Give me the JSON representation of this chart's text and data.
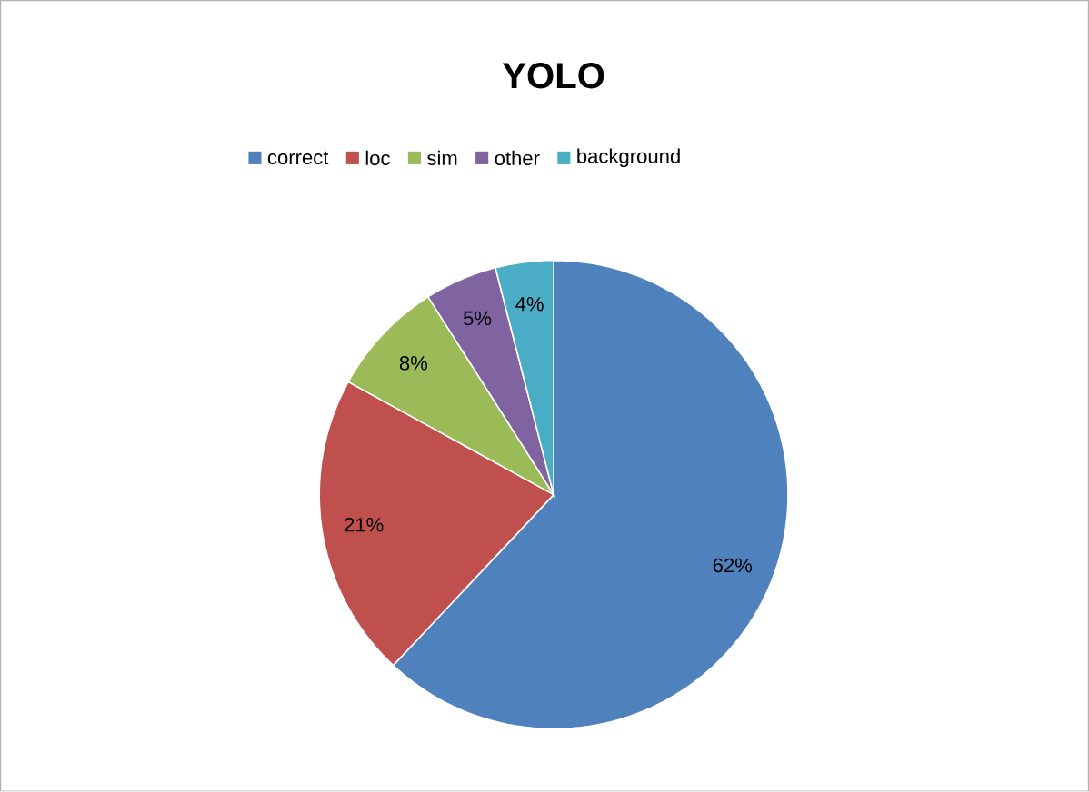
{
  "chart_data": {
    "type": "pie",
    "title": "YOLO",
    "categories": [
      "correct",
      "loc",
      "sim",
      "other",
      "background"
    ],
    "values": [
      62,
      21,
      8,
      5,
      4
    ],
    "value_labels": [
      "62%",
      "21%",
      "8%",
      "5%",
      "4%"
    ],
    "colors": [
      "#4f81bd",
      "#c0504d",
      "#9bbb59",
      "#8064a2",
      "#4bacc6"
    ],
    "legend": "top"
  }
}
